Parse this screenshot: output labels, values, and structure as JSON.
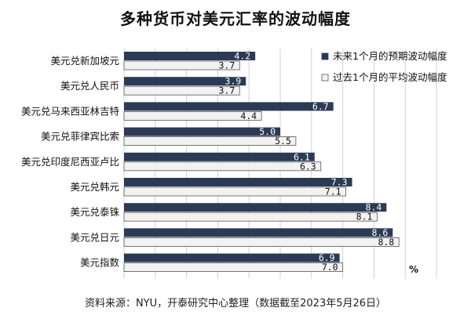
{
  "title": "多种货币对美元汇率的波动幅度",
  "source_note": "资料来源：NYU，开泰研究中心整理（数据截至2023年5月26日）",
  "colors": {
    "future": "#2b3a55",
    "past": "#f2f2f2",
    "past_border": "#555555",
    "grid": "#d0d0d0"
  },
  "chart_data": {
    "type": "bar",
    "orientation": "horizontal",
    "title": "多种货币对美元汇率的波动幅度",
    "categories": [
      "美元兑新加坡元",
      "美元兑人民币",
      "美元兑马来西亚林吉特",
      "美元兑菲律宾比索",
      "美元兑印度尼西亚卢比",
      "美元兑韩元",
      "美元兑泰铢",
      "美元兑日元",
      "美元指数"
    ],
    "series": [
      {
        "name": "未来1个月的预期波动幅度",
        "values": [
          4.2,
          3.9,
          6.7,
          5.0,
          6.1,
          7.3,
          8.4,
          8.6,
          6.9
        ]
      },
      {
        "name": "过去1个月的平均波动幅度",
        "values": [
          3.7,
          3.7,
          4.4,
          5.5,
          6.3,
          7.1,
          8.1,
          8.8,
          7.0
        ]
      }
    ],
    "value_labels": [
      [
        "4.2",
        "3.9",
        "6.7",
        "5.0",
        "6.1",
        "7.3",
        "8.4",
        "8.6",
        "6.9"
      ],
      [
        "3.7",
        "3.7",
        "4.4",
        "5.5",
        "6.3",
        "7.1",
        "8.1",
        "8.8",
        "7.0"
      ]
    ],
    "unit_label": "%",
    "xlim": [
      0,
      10
    ],
    "grid": true,
    "legend_position": "right"
  }
}
